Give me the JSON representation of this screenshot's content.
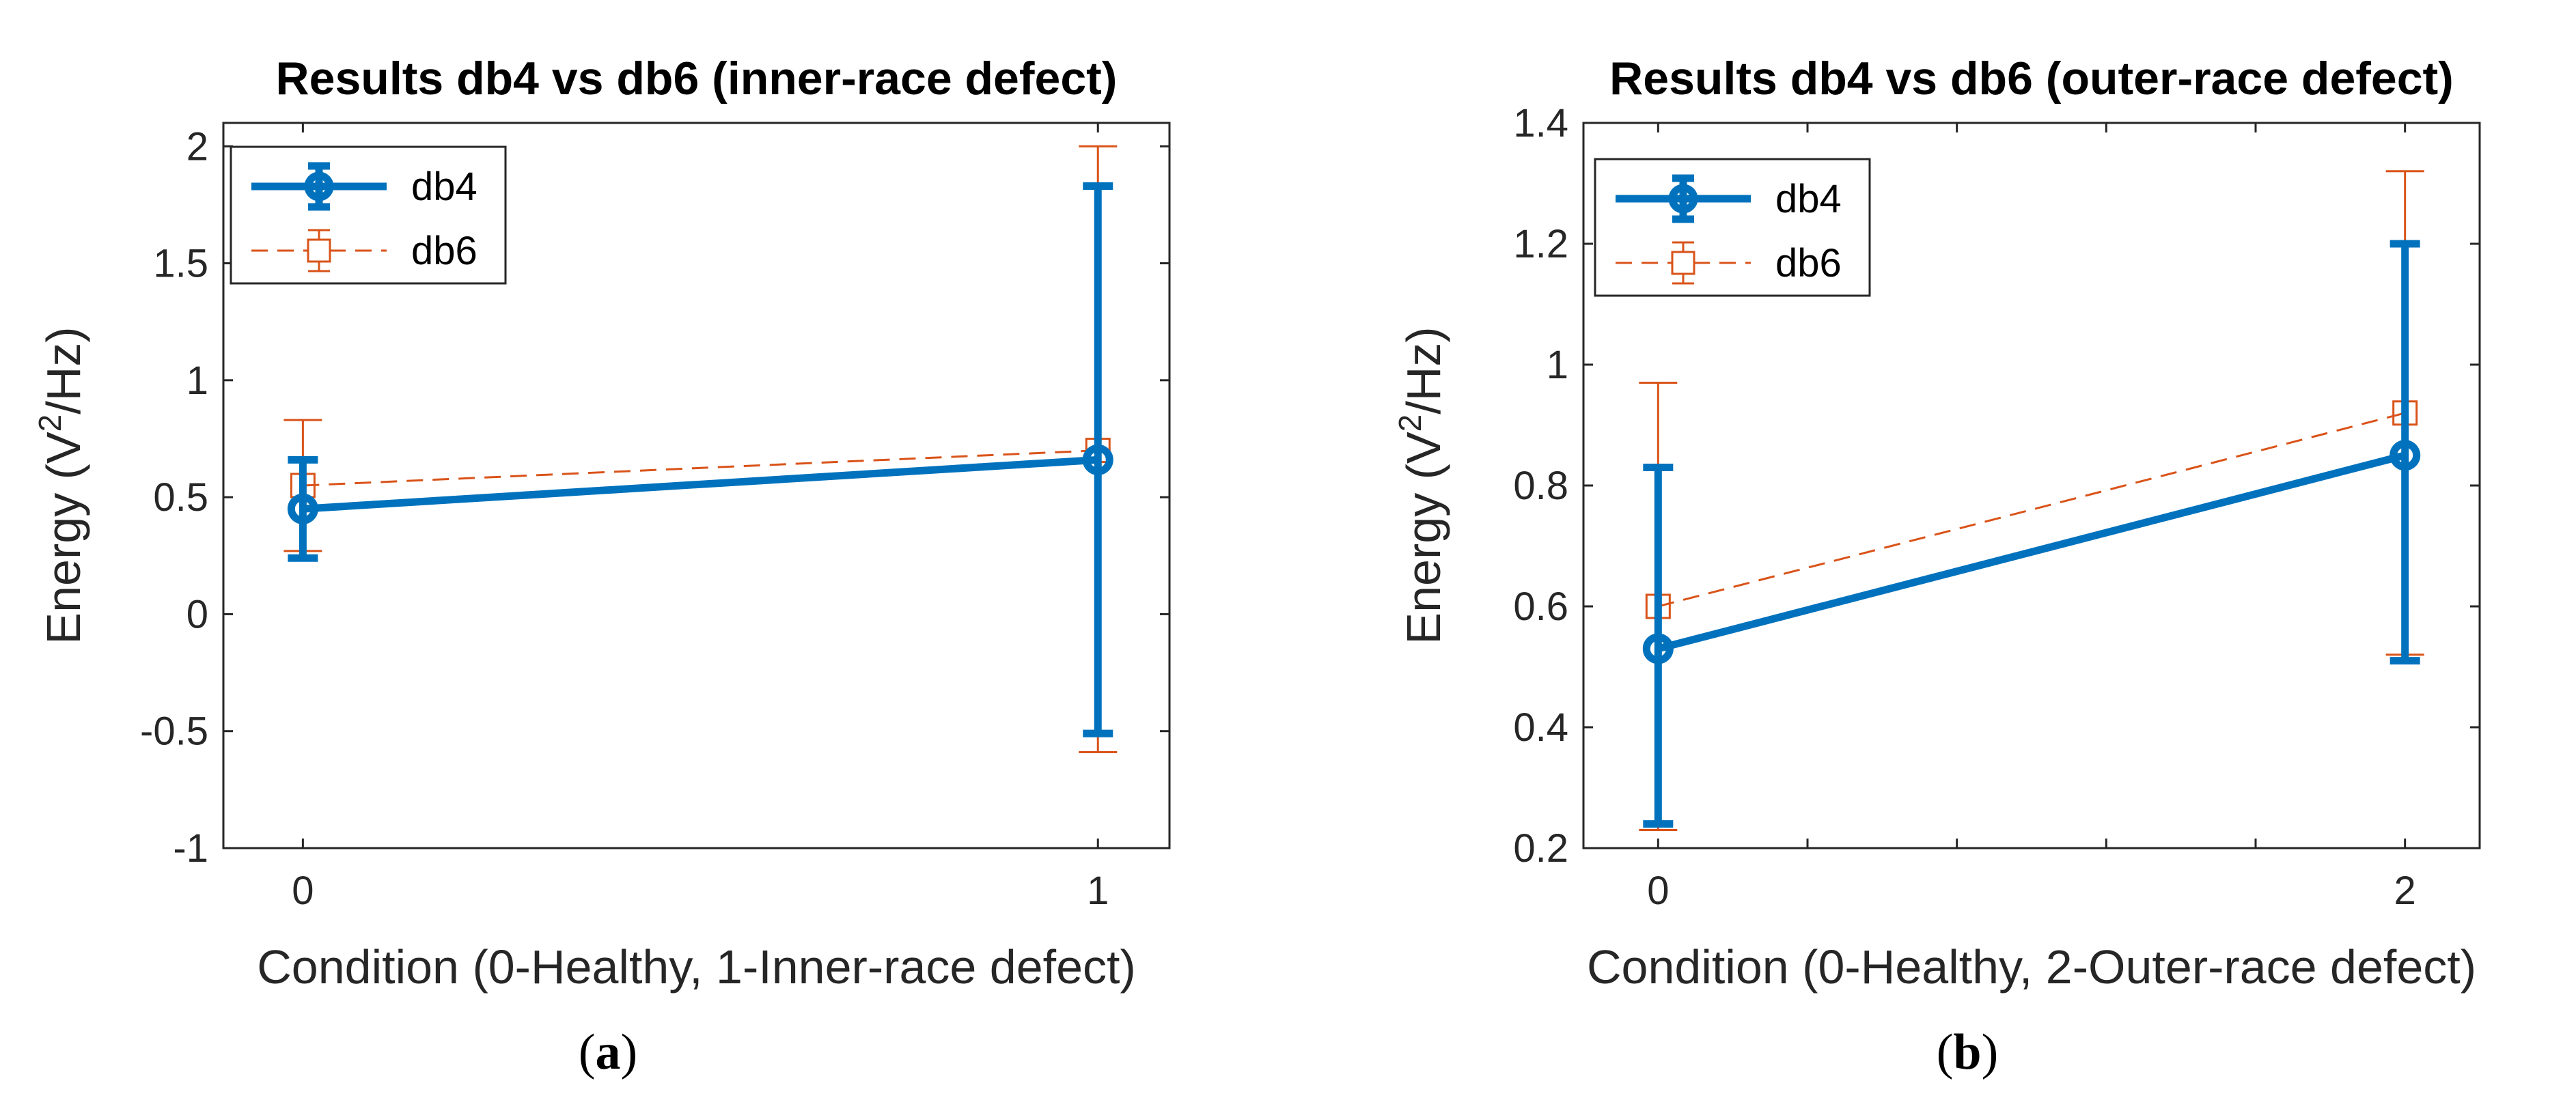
{
  "chart_data": [
    {
      "type": "line",
      "title": "Results db4 vs db6 (inner-race defect)",
      "xlabel": "Condition (0-Healthy, 1-Inner-race defect)",
      "ylabel": {
        "prefix": "Energy (V",
        "sup": "2",
        "suffix": "/Hz)"
      },
      "xlim": [
        -0.1,
        1.09
      ],
      "ylim": [
        -1,
        2.1
      ],
      "xticks": [
        0,
        1
      ],
      "xticklabels": [
        "0",
        "1"
      ],
      "yticks": [
        -1,
        -0.5,
        0,
        0.5,
        1,
        1.5,
        2
      ],
      "yticklabels": [
        "-1",
        "-0.5",
        "0",
        "0.5",
        "1",
        "1.5",
        "2"
      ],
      "legend_position": "top-left",
      "grid": false,
      "series": [
        {
          "name": "db4",
          "x": [
            0,
            1
          ],
          "y": [
            0.45,
            0.66
          ],
          "lower": [
            0.24,
            -0.51
          ],
          "upper": [
            0.66,
            1.83
          ],
          "color": "#0072BD",
          "marker": "circle",
          "line": "solid"
        },
        {
          "name": "db6",
          "x": [
            0,
            1
          ],
          "y": [
            0.55,
            0.7
          ],
          "lower": [
            0.27,
            -0.59
          ],
          "upper": [
            0.83,
            2.0
          ],
          "color": "#D95319",
          "marker": "square",
          "line": "dashed"
        }
      ],
      "caption_letter": "a"
    },
    {
      "type": "line",
      "title": "Results db4 vs db6 (outer-race defect)",
      "xlabel": "Condition (0-Healthy, 2-Outer-race defect)",
      "ylabel": {
        "prefix": "Energy (V",
        "sup": "2",
        "suffix": "/Hz)"
      },
      "xlim": [
        -0.2,
        2.2
      ],
      "ylim": [
        0.2,
        1.4
      ],
      "xticks": [
        0,
        2
      ],
      "xticklabels": [
        "0",
        "2"
      ],
      "minor_xticks": [
        0.4,
        0.8,
        1.2,
        1.6
      ],
      "yticks": [
        0.2,
        0.4,
        0.6,
        0.8,
        1,
        1.2,
        1.4
      ],
      "yticklabels": [
        "0.2",
        "0.4",
        "0.6",
        "0.8",
        "1",
        "1.2",
        "1.4"
      ],
      "legend_position": "top-left",
      "grid": false,
      "series": [
        {
          "name": "db4",
          "x": [
            0,
            2
          ],
          "y": [
            0.53,
            0.85
          ],
          "lower": [
            0.24,
            0.51
          ],
          "upper": [
            0.83,
            1.2
          ],
          "color": "#0072BD",
          "marker": "circle",
          "line": "solid"
        },
        {
          "name": "db6",
          "x": [
            0,
            2
          ],
          "y": [
            0.6,
            0.92
          ],
          "lower": [
            0.23,
            0.52
          ],
          "upper": [
            0.97,
            1.32
          ],
          "color": "#D95319",
          "marker": "square",
          "line": "dashed"
        }
      ],
      "caption_letter": "b"
    }
  ]
}
